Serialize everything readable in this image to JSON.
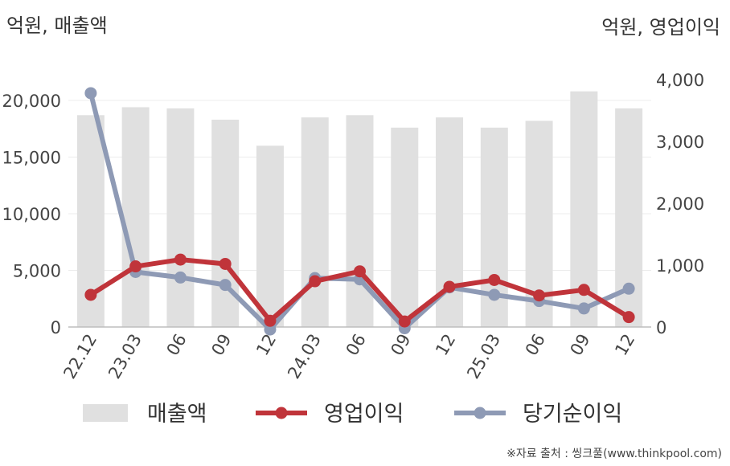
{
  "chart_data": {
    "type": "bar+line",
    "left_axis_unit": "억원, 매출액",
    "right_axis_unit": "억원, 영업이익",
    "categories": [
      "22.12",
      "23.03",
      "06",
      "09",
      "12",
      "24.03",
      "06",
      "09",
      "12",
      "25.03",
      "06",
      "09",
      "12"
    ],
    "left_ticks": [
      "0",
      "5,000",
      "10,000",
      "15,000",
      "20,000"
    ],
    "right_ticks": [
      "0",
      "1,000",
      "2,000",
      "3,000",
      "4,000"
    ],
    "ylim_left": [
      0,
      20000
    ],
    "ylim_right": [
      0,
      4000
    ],
    "grid": true,
    "series": [
      {
        "name": "매출액",
        "type": "bar",
        "axis": "left",
        "color": "#e0e0e0",
        "values": [
          18700,
          19400,
          19300,
          18300,
          16000,
          18500,
          18700,
          17600,
          18500,
          17600,
          18200,
          20800,
          19300
        ]
      },
      {
        "name": "영업이익",
        "type": "line",
        "axis": "right",
        "color": "#c0343a",
        "values": [
          520,
          980,
          1090,
          1020,
          100,
          740,
          900,
          90,
          650,
          760,
          510,
          600,
          160
        ]
      },
      {
        "name": "당기순이익",
        "type": "line",
        "axis": "right",
        "color": "#8e9ab5",
        "values": [
          3780,
          890,
          800,
          680,
          -40,
          790,
          770,
          -20,
          640,
          520,
          420,
          300,
          620
        ]
      }
    ]
  },
  "legend": {
    "items": [
      "매출액",
      "영업이익",
      "당기순이익"
    ],
    "position": "bottom"
  },
  "source_note": "※자료 출처 : 씽크풀(www.thinkpool.com)"
}
